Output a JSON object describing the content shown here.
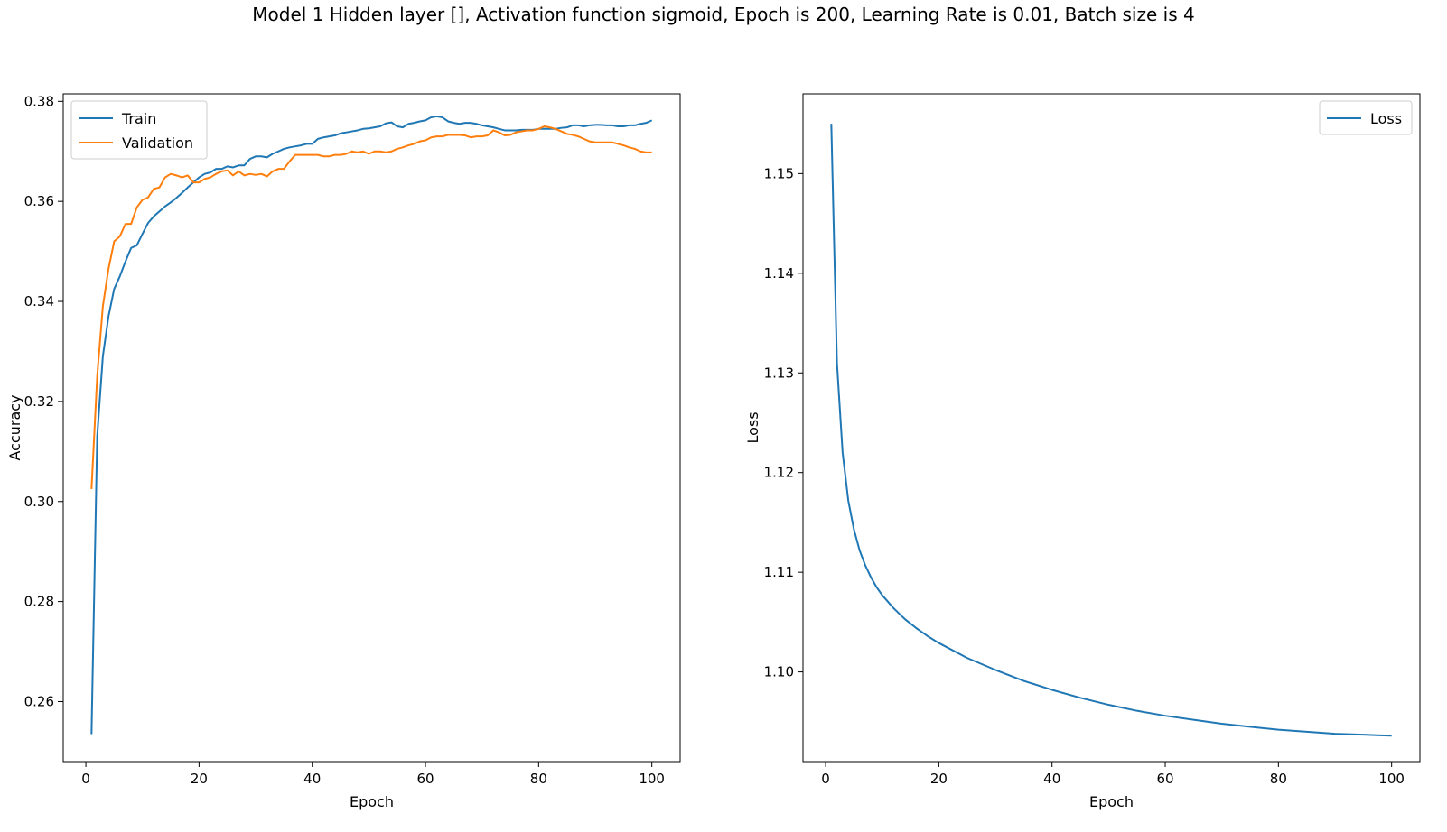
{
  "figure": {
    "title": "Model 1 Hidden layer [], Activation function sigmoid, Epoch is 200, Learning Rate is 0.01, Batch size is 4"
  },
  "colors": {
    "train": "#1f77b4",
    "validation": "#ff7f0e",
    "loss": "#1f77b4"
  },
  "chart_data": [
    {
      "type": "line",
      "xlabel": "Epoch",
      "ylabel": "Accuracy",
      "xlim": [
        -4,
        105
      ],
      "ylim": [
        0.248,
        0.3815
      ],
      "xticks": [
        0,
        20,
        40,
        60,
        80,
        100
      ],
      "yticks": [
        0.26,
        0.28,
        0.3,
        0.32,
        0.34,
        0.36,
        0.38
      ],
      "ytick_labels": [
        "0.26",
        "0.28",
        "0.30",
        "0.32",
        "0.34",
        "0.36",
        "0.38"
      ],
      "legend_position": "upper-left",
      "grid": false,
      "x": [
        1,
        2,
        3,
        4,
        5,
        6,
        7,
        8,
        9,
        10,
        11,
        12,
        13,
        14,
        15,
        16,
        17,
        18,
        19,
        20,
        21,
        22,
        23,
        24,
        25,
        26,
        27,
        28,
        29,
        30,
        31,
        32,
        33,
        34,
        35,
        36,
        37,
        38,
        39,
        40,
        41,
        42,
        43,
        44,
        45,
        46,
        47,
        48,
        49,
        50,
        51,
        52,
        53,
        54,
        55,
        56,
        57,
        58,
        59,
        60,
        61,
        62,
        63,
        64,
        65,
        66,
        67,
        68,
        69,
        70,
        71,
        72,
        73,
        74,
        75,
        76,
        77,
        78,
        79,
        80,
        81,
        82,
        83,
        84,
        85,
        86,
        87,
        88,
        89,
        90,
        91,
        92,
        93,
        94,
        95,
        96,
        97,
        98,
        99,
        100
      ],
      "series": [
        {
          "name": "Train",
          "color": "#1f77b4",
          "values": [
            0.2535,
            0.313,
            0.329,
            0.337,
            0.3425,
            0.345,
            0.348,
            0.3507,
            0.3512,
            0.3535,
            0.3557,
            0.357,
            0.358,
            0.359,
            0.3598,
            0.3607,
            0.3617,
            0.3628,
            0.3638,
            0.3648,
            0.3655,
            0.3658,
            0.3665,
            0.3665,
            0.367,
            0.3668,
            0.3672,
            0.3672,
            0.3685,
            0.369,
            0.369,
            0.3688,
            0.3695,
            0.37,
            0.3705,
            0.3708,
            0.371,
            0.3712,
            0.3715,
            0.3715,
            0.3725,
            0.3728,
            0.373,
            0.3732,
            0.3736,
            0.3738,
            0.374,
            0.3742,
            0.3745,
            0.3746,
            0.3748,
            0.375,
            0.3756,
            0.3758,
            0.375,
            0.3748,
            0.3755,
            0.3757,
            0.376,
            0.3762,
            0.3768,
            0.377,
            0.3768,
            0.376,
            0.3757,
            0.3755,
            0.3757,
            0.3757,
            0.3755,
            0.3752,
            0.375,
            0.3748,
            0.3745,
            0.3742,
            0.3742,
            0.3742,
            0.3743,
            0.3743,
            0.3743,
            0.3745,
            0.3745,
            0.3745,
            0.3745,
            0.3747,
            0.3748,
            0.3752,
            0.3752,
            0.375,
            0.3752,
            0.3753,
            0.3753,
            0.3752,
            0.3752,
            0.375,
            0.375,
            0.3752,
            0.3752,
            0.3755,
            0.3757,
            0.3762
          ]
        },
        {
          "name": "Validation",
          "color": "#ff7f0e",
          "values": [
            0.3025,
            0.325,
            0.339,
            0.3465,
            0.352,
            0.353,
            0.3555,
            0.3555,
            0.3588,
            0.3603,
            0.3608,
            0.3625,
            0.3628,
            0.3648,
            0.3655,
            0.3652,
            0.3648,
            0.3652,
            0.3638,
            0.3638,
            0.3645,
            0.3648,
            0.3655,
            0.366,
            0.3662,
            0.3652,
            0.366,
            0.3652,
            0.3655,
            0.3653,
            0.3655,
            0.365,
            0.366,
            0.3665,
            0.3665,
            0.368,
            0.3693,
            0.3693,
            0.3693,
            0.3693,
            0.3693,
            0.369,
            0.369,
            0.3693,
            0.3693,
            0.3695,
            0.37,
            0.3698,
            0.37,
            0.3695,
            0.37,
            0.37,
            0.3698,
            0.37,
            0.3705,
            0.3708,
            0.3712,
            0.3715,
            0.372,
            0.3722,
            0.3728,
            0.373,
            0.373,
            0.3733,
            0.3733,
            0.3733,
            0.3732,
            0.3728,
            0.373,
            0.373,
            0.3732,
            0.3742,
            0.3738,
            0.3732,
            0.3733,
            0.3738,
            0.374,
            0.3742,
            0.3742,
            0.3745,
            0.375,
            0.3748,
            0.3745,
            0.374,
            0.3735,
            0.3733,
            0.373,
            0.3725,
            0.372,
            0.3718,
            0.3718,
            0.3718,
            0.3718,
            0.3715,
            0.3712,
            0.3708,
            0.3705,
            0.37,
            0.3698,
            0.3698
          ]
        }
      ]
    },
    {
      "type": "line",
      "xlabel": "Epoch",
      "ylabel": "Loss",
      "xlim": [
        -4,
        105
      ],
      "ylim": [
        1.091,
        1.158
      ],
      "xticks": [
        0,
        20,
        40,
        60,
        80,
        100
      ],
      "yticks": [
        1.1,
        1.11,
        1.12,
        1.13,
        1.14,
        1.15
      ],
      "ytick_labels": [
        "1.10",
        "1.11",
        "1.12",
        "1.13",
        "1.14",
        "1.15"
      ],
      "legend_position": "upper-right",
      "grid": false,
      "x": [
        1,
        2,
        3,
        4,
        5,
        6,
        7,
        8,
        9,
        10,
        12,
        14,
        16,
        18,
        20,
        25,
        30,
        35,
        40,
        45,
        50,
        55,
        60,
        65,
        70,
        75,
        80,
        85,
        90,
        95,
        100
      ],
      "series": [
        {
          "name": "Loss",
          "color": "#1f77b4",
          "values": [
            1.155,
            1.131,
            1.122,
            1.1172,
            1.1143,
            1.1122,
            1.1107,
            1.1095,
            1.1085,
            1.1077,
            1.1064,
            1.1053,
            1.1044,
            1.1036,
            1.1029,
            1.1014,
            1.1002,
            1.0991,
            1.0982,
            1.0974,
            1.0967,
            1.0961,
            1.0956,
            1.0952,
            1.0948,
            1.0945,
            1.0942,
            1.094,
            1.0938,
            1.0937,
            1.0936
          ]
        }
      ]
    }
  ]
}
